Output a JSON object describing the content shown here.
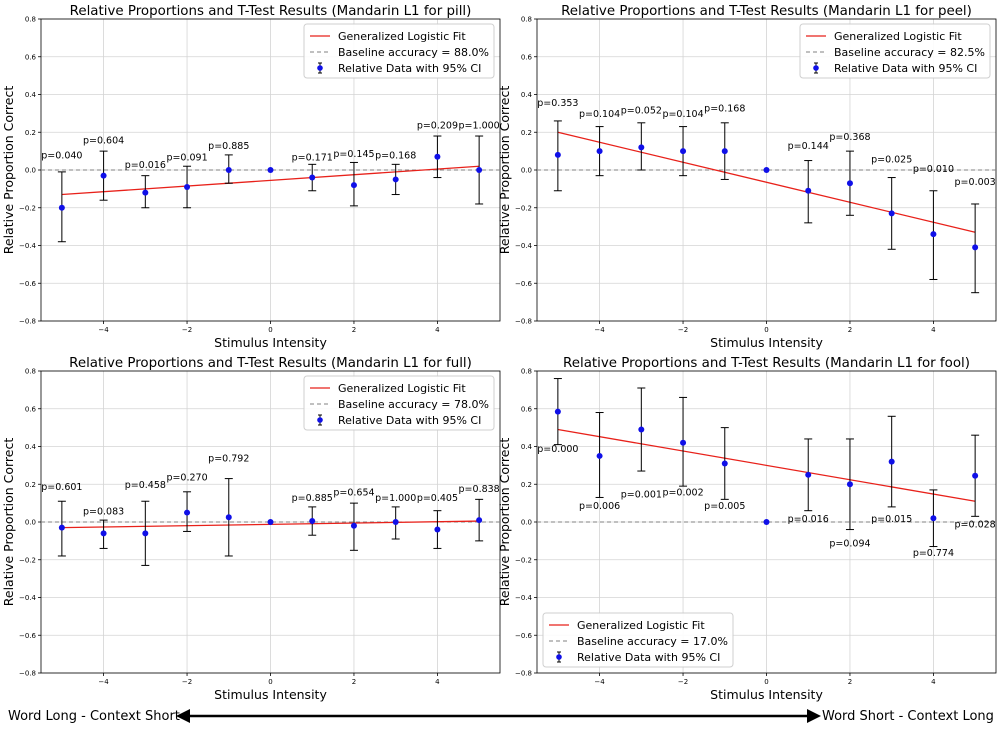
{
  "chart_data": [
    {
      "type": "scatter",
      "title": "Relative Proportions and T-Test Results (Mandarin L1 for pill)",
      "xlabel": "Stimulus Intensity",
      "ylabel": "Relative Proportion Correct",
      "xlim": [
        -5.5,
        5.5
      ],
      "ylim": [
        -0.8,
        0.8
      ],
      "xticks": [
        -4,
        -2,
        0,
        2,
        4
      ],
      "yticks": [
        -0.8,
        -0.6,
        -0.4,
        -0.2,
        0.0,
        0.2,
        0.4,
        0.6,
        0.8
      ],
      "grid": true,
      "legend_position": "top-right",
      "legend": [
        "Generalized Logistic Fit",
        "Baseline accuracy = 88.0%",
        "Relative Data with 95% CI"
      ],
      "baseline": 0,
      "fit": [
        [
          -5,
          -0.13
        ],
        [
          5,
          0.02
        ]
      ],
      "x": [
        -5,
        -4,
        -3,
        -2,
        -1,
        0,
        1,
        2,
        3,
        4,
        5
      ],
      "y": [
        -0.2,
        -0.03,
        -0.12,
        -0.09,
        0.0,
        0.0,
        -0.04,
        -0.08,
        -0.05,
        0.07,
        0.0
      ],
      "ci_lower": [
        -0.38,
        -0.16,
        -0.2,
        -0.2,
        -0.07,
        0.0,
        -0.11,
        -0.19,
        -0.13,
        -0.04,
        -0.18
      ],
      "ci_upper": [
        -0.01,
        0.1,
        -0.03,
        0.02,
        0.08,
        0.0,
        0.03,
        0.04,
        0.03,
        0.18,
        0.18
      ],
      "annotations": [
        "p=0.040",
        "p=0.604",
        "p=0.016",
        "p=0.091",
        "p=0.885",
        "",
        "p=0.171",
        "p=0.145",
        "p=0.168",
        "p=0.209",
        "p=1.000"
      ],
      "annotation_y": [
        0.06,
        0.14,
        0.01,
        0.05,
        0.11,
        null,
        0.05,
        0.07,
        0.06,
        0.22,
        0.22
      ]
    },
    {
      "type": "scatter",
      "title": "Relative Proportions and T-Test Results (Mandarin L1 for peel)",
      "xlabel": "Stimulus Intensity",
      "ylabel": "Relative Proportion Correct",
      "xlim": [
        -5.5,
        5.5
      ],
      "ylim": [
        -0.8,
        0.8
      ],
      "xticks": [
        -4,
        -2,
        0,
        2,
        4
      ],
      "yticks": [
        -0.8,
        -0.6,
        -0.4,
        -0.2,
        0.0,
        0.2,
        0.4,
        0.6,
        0.8
      ],
      "grid": true,
      "legend_position": "top-right",
      "legend": [
        "Generalized Logistic Fit",
        "Baseline accuracy = 82.5%",
        "Relative Data with 95% CI"
      ],
      "baseline": 0,
      "fit": [
        [
          -5,
          0.2
        ],
        [
          5,
          -0.33
        ]
      ],
      "x": [
        -5,
        -4,
        -3,
        -2,
        -1,
        0,
        1,
        2,
        3,
        4,
        5
      ],
      "y": [
        0.08,
        0.1,
        0.12,
        0.1,
        0.1,
        0.0,
        -0.11,
        -0.07,
        -0.23,
        -0.34,
        -0.41
      ],
      "ci_lower": [
        -0.11,
        -0.03,
        0.0,
        -0.03,
        -0.05,
        0.0,
        -0.28,
        -0.24,
        -0.42,
        -0.58,
        -0.65
      ],
      "ci_upper": [
        0.26,
        0.23,
        0.25,
        0.23,
        0.25,
        0.0,
        0.05,
        0.1,
        -0.04,
        -0.11,
        -0.18
      ],
      "annotations": [
        "p=0.353",
        "p=0.104",
        "p=0.052",
        "p=0.104",
        "p=0.168",
        "",
        "p=0.144",
        "p=0.368",
        "p=0.025",
        "p=0.010",
        "p=0.003"
      ],
      "annotation_y": [
        0.34,
        0.28,
        0.3,
        0.28,
        0.31,
        null,
        0.11,
        0.16,
        0.04,
        -0.01,
        -0.08
      ]
    },
    {
      "type": "scatter",
      "title": "Relative Proportions and T-Test Results (Mandarin L1 for full)",
      "xlabel": "Stimulus Intensity",
      "ylabel": "Relative Proportion Correct",
      "xlim": [
        -5.5,
        5.5
      ],
      "ylim": [
        -0.8,
        0.8
      ],
      "xticks": [
        -4,
        -2,
        0,
        2,
        4
      ],
      "yticks": [
        -0.8,
        -0.6,
        -0.4,
        -0.2,
        0.0,
        0.2,
        0.4,
        0.6,
        0.8
      ],
      "grid": true,
      "legend_position": "top-right",
      "legend": [
        "Generalized Logistic Fit",
        "Baseline accuracy = 78.0%",
        "Relative Data with 95% CI"
      ],
      "baseline": 0,
      "fit": [
        [
          -5,
          -0.03
        ],
        [
          5,
          0.005
        ]
      ],
      "x": [
        -5,
        -4,
        -3,
        -2,
        -1,
        0,
        1,
        2,
        3,
        4,
        5
      ],
      "y": [
        -0.03,
        -0.06,
        -0.06,
        0.05,
        0.025,
        0.0,
        0.005,
        -0.02,
        0.0,
        -0.04,
        0.01
      ],
      "ci_lower": [
        -0.18,
        -0.14,
        -0.23,
        -0.05,
        -0.18,
        0.0,
        -0.07,
        -0.15,
        -0.09,
        -0.14,
        -0.1
      ],
      "ci_upper": [
        0.11,
        0.01,
        0.11,
        0.16,
        0.23,
        0.0,
        0.08,
        0.1,
        0.08,
        0.06,
        0.12
      ],
      "annotations": [
        "p=0.601",
        "p=0.083",
        "p=0.458",
        "p=0.270",
        "p=0.792",
        "",
        "p=0.885",
        "p=0.654",
        "p=1.000",
        "p=0.405",
        "p=0.838"
      ],
      "annotation_y": [
        0.17,
        0.04,
        0.18,
        0.22,
        0.32,
        null,
        0.11,
        0.14,
        0.11,
        0.11,
        0.16
      ]
    },
    {
      "type": "scatter",
      "title": "Relative Proportions and T-Test Results (Mandarin L1 for fool)",
      "xlabel": "Stimulus Intensity",
      "ylabel": "Relative Proportion Correct",
      "xlim": [
        -5.5,
        5.5
      ],
      "ylim": [
        -0.8,
        0.8
      ],
      "xticks": [
        -4,
        -2,
        0,
        2,
        4
      ],
      "yticks": [
        -0.8,
        -0.6,
        -0.4,
        -0.2,
        0.0,
        0.2,
        0.4,
        0.6,
        0.8
      ],
      "grid": true,
      "legend_position": "bottom-left",
      "legend": [
        "Generalized Logistic Fit",
        "Baseline accuracy = 17.0%",
        "Relative Data with 95% CI"
      ],
      "baseline": 0,
      "fit": [
        [
          -5,
          0.49
        ],
        [
          5,
          0.11
        ]
      ],
      "x": [
        -5,
        -4,
        -3,
        -2,
        -1,
        0,
        1,
        2,
        3,
        4,
        5
      ],
      "y": [
        0.585,
        0.35,
        0.49,
        0.42,
        0.31,
        0.0,
        0.25,
        0.2,
        0.32,
        0.02,
        0.245
      ],
      "ci_lower": [
        0.41,
        0.13,
        0.27,
        0.19,
        0.12,
        0.0,
        0.06,
        -0.04,
        0.08,
        -0.13,
        0.03
      ],
      "ci_upper": [
        0.76,
        0.58,
        0.71,
        0.66,
        0.5,
        0.0,
        0.44,
        0.44,
        0.56,
        0.17,
        0.46
      ],
      "annotations": [
        "p=0.000",
        "p=0.006",
        "p=0.001",
        "p=0.002",
        "p=0.005",
        "",
        "p=0.016",
        "p=0.094",
        "p=0.015",
        "p=0.774",
        "p=0.028"
      ],
      "annotation_y": [
        0.37,
        0.07,
        0.13,
        0.14,
        0.07,
        null,
        0.0,
        -0.13,
        0.0,
        -0.18,
        -0.03
      ]
    }
  ],
  "footer": {
    "left_label": "Word Long - Context Short",
    "right_label": "Word Short - Context Long"
  }
}
